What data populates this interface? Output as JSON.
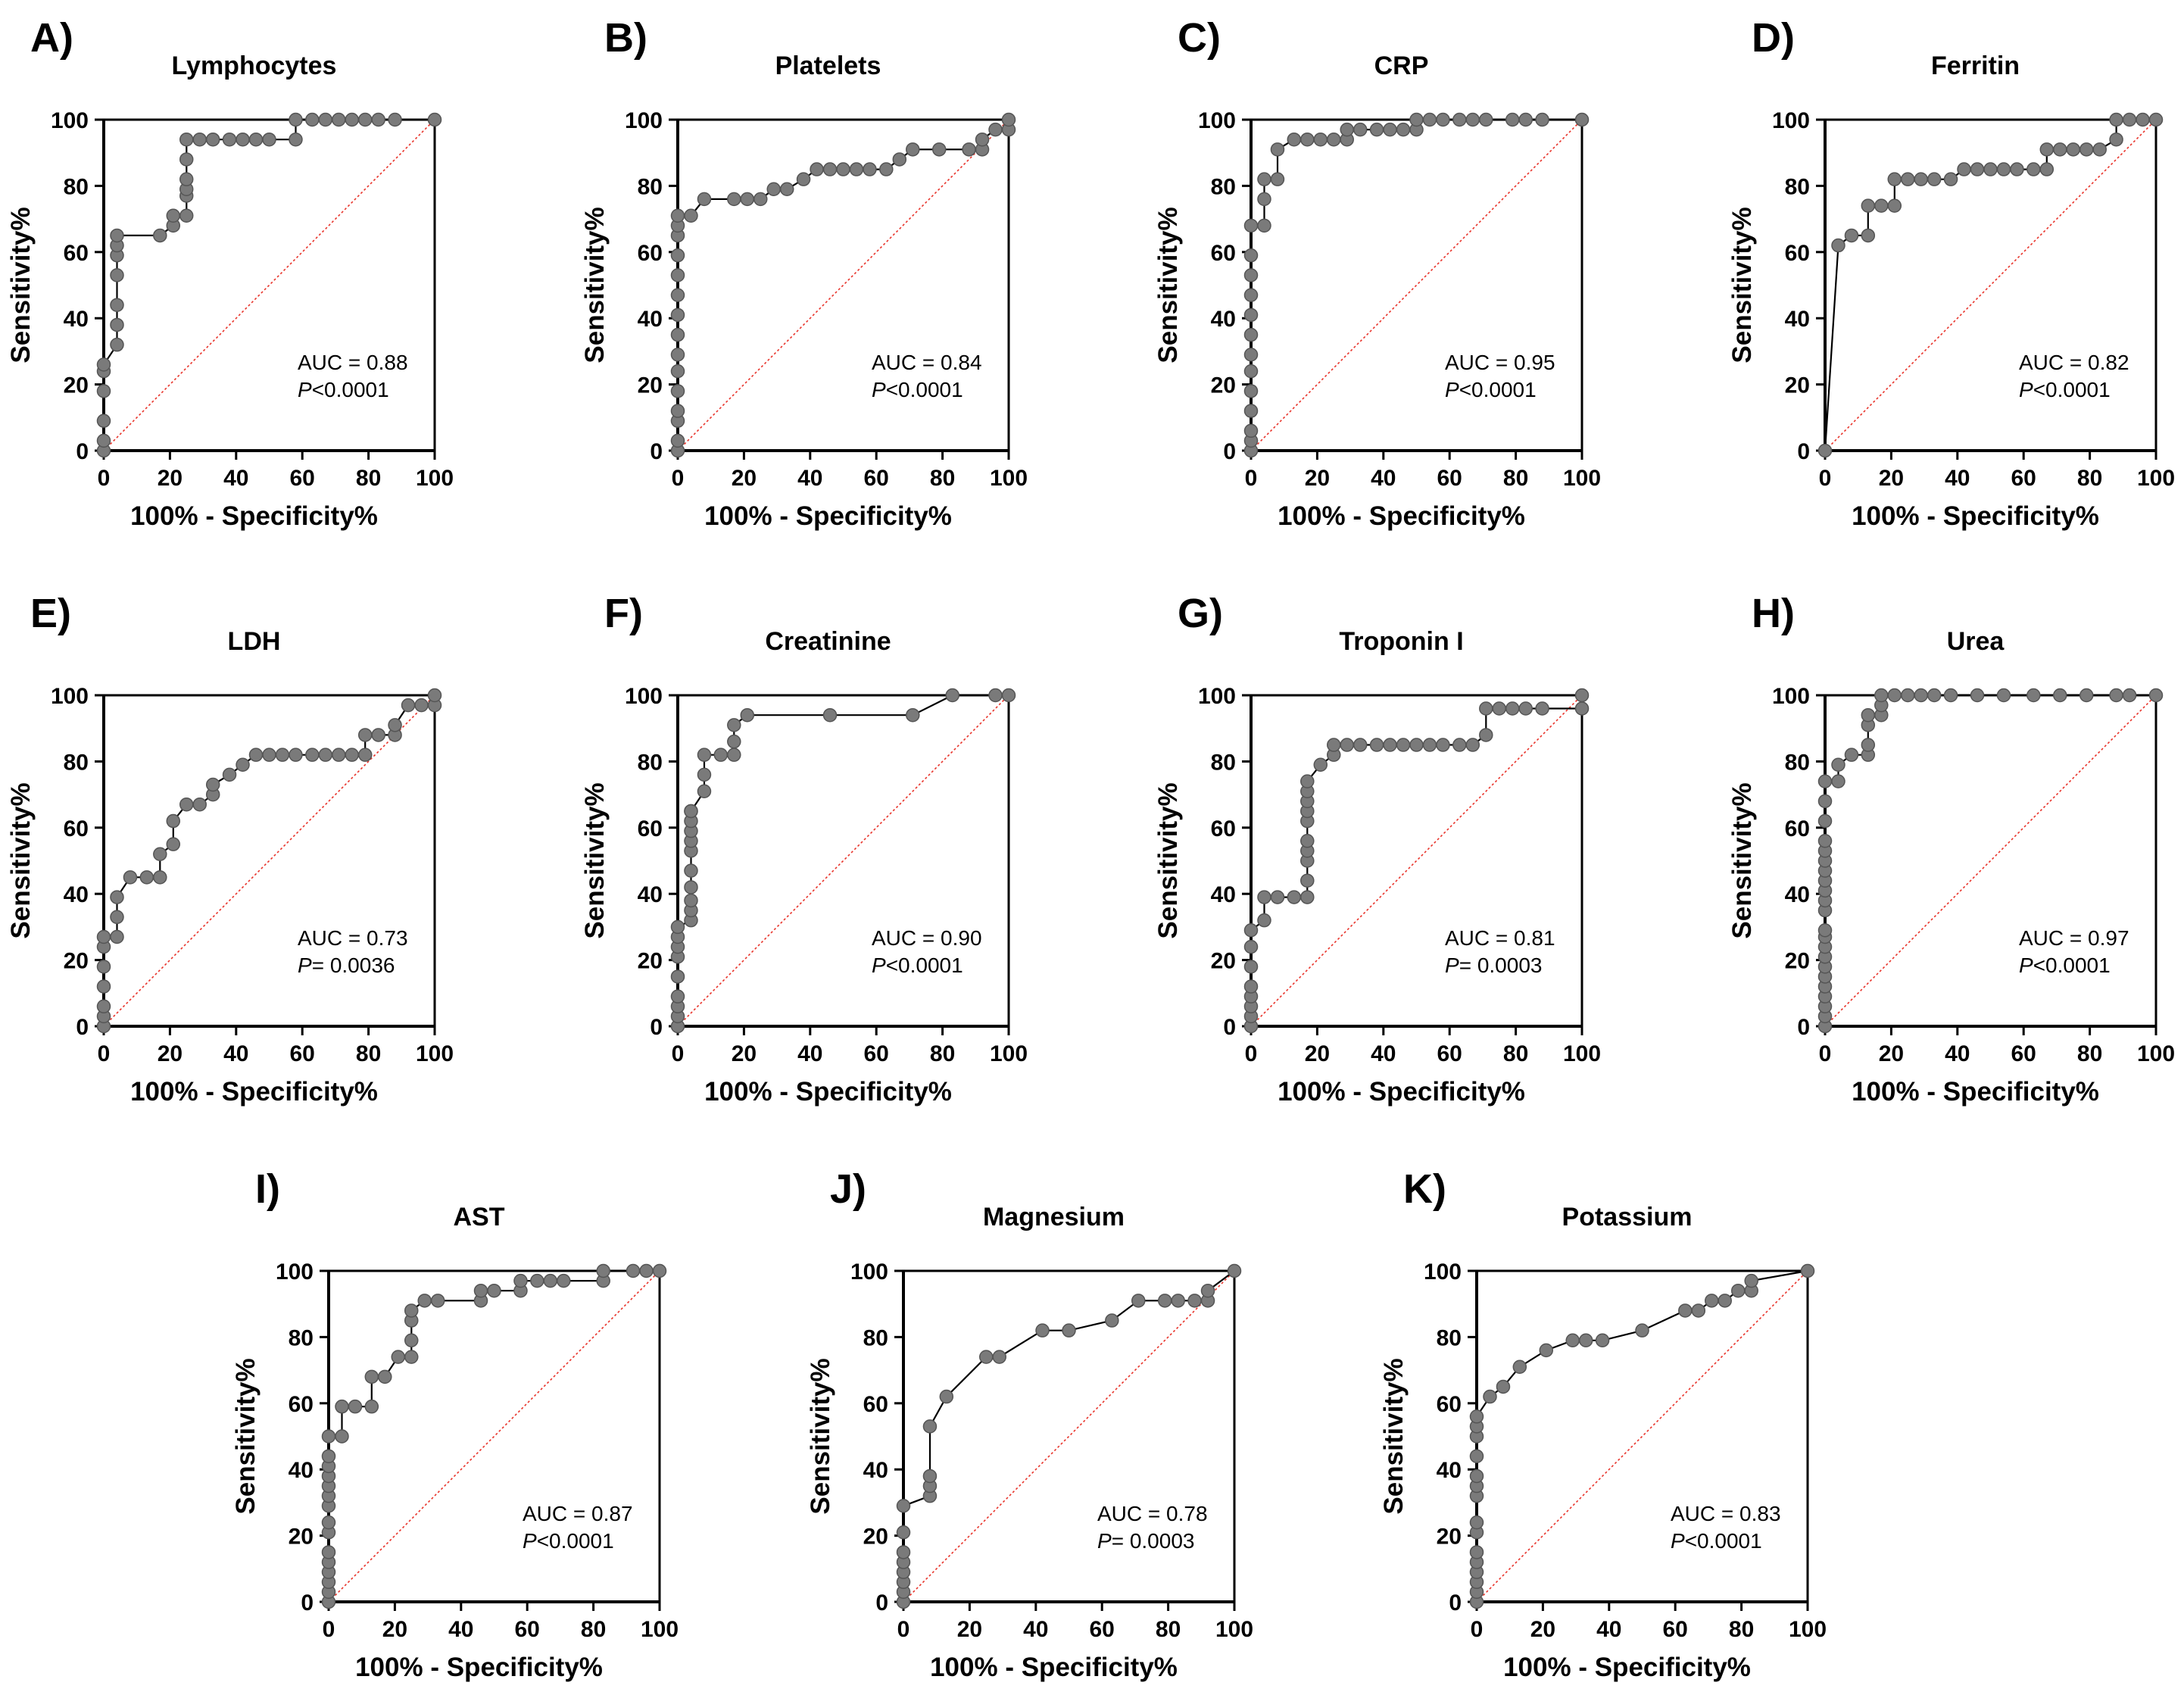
{
  "figure": {
    "xlabel": "100% - Specificity%",
    "ylabel": "Sensitivity%",
    "xlim": [
      0,
      100
    ],
    "ylim": [
      0,
      100
    ],
    "ticks": [
      0,
      20,
      40,
      60,
      80,
      100
    ],
    "tick_labels": [
      "0",
      "20",
      "40",
      "60",
      "80",
      "100"
    ],
    "colors": {
      "curve": "#000000",
      "marker_fill": "#7a7a7a",
      "marker_edge": "#555555",
      "reference": "#e8332a"
    }
  },
  "chart_data": [
    {
      "type": "line",
      "panel": "A)",
      "title": "Lymphocytes",
      "auc_label": "AUC = 0.88",
      "p_prefix": "P",
      "p_rest": "<0.0001",
      "x": [
        0,
        0,
        0,
        0,
        0,
        0,
        4,
        4,
        4,
        4,
        4,
        4,
        4,
        17,
        21,
        21,
        25,
        25,
        25,
        25,
        25,
        25,
        29,
        33,
        38,
        42,
        46,
        50,
        58,
        58,
        63,
        67,
        71,
        75,
        79,
        83,
        88,
        100
      ],
      "y": [
        0,
        3,
        9,
        18,
        24,
        26,
        32,
        38,
        44,
        53,
        59,
        62,
        65,
        65,
        68,
        71,
        71,
        77,
        79,
        82,
        88,
        94,
        94,
        94,
        94,
        94,
        94,
        94,
        94,
        100,
        100,
        100,
        100,
        100,
        100,
        100,
        100,
        100
      ]
    },
    {
      "type": "line",
      "panel": "B)",
      "title": "Platelets",
      "auc_label": "AUC = 0.84",
      "p_prefix": "P",
      "p_rest": "<0.0001",
      "x": [
        0,
        0,
        0,
        0,
        0,
        0,
        0,
        0,
        0,
        0,
        0,
        0,
        0,
        0,
        0,
        4,
        8,
        17,
        21,
        25,
        29,
        33,
        38,
        42,
        46,
        50,
        54,
        58,
        63,
        67,
        71,
        79,
        88,
        92,
        92,
        96,
        100,
        100
      ],
      "y": [
        0,
        3,
        9,
        12,
        18,
        24,
        29,
        35,
        41,
        47,
        53,
        59,
        65,
        68,
        71,
        71,
        76,
        76,
        76,
        76,
        79,
        79,
        82,
        85,
        85,
        85,
        85,
        85,
        85,
        88,
        91,
        91,
        91,
        91,
        94,
        97,
        97,
        100
      ]
    },
    {
      "type": "line",
      "panel": "C)",
      "title": "CRP",
      "auc_label": "AUC = 0.95",
      "p_prefix": "P",
      "p_rest": "<0.0001",
      "x": [
        0,
        0,
        0,
        0,
        0,
        0,
        0,
        0,
        0,
        0,
        0,
        0,
        0,
        4,
        4,
        4,
        8,
        8,
        13,
        17,
        21,
        25,
        29,
        29,
        33,
        38,
        42,
        46,
        50,
        50,
        54,
        58,
        63,
        67,
        71,
        79,
        83,
        88,
        100
      ],
      "y": [
        0,
        3,
        6,
        12,
        18,
        24,
        29,
        35,
        41,
        47,
        53,
        59,
        68,
        68,
        76,
        82,
        82,
        91,
        94,
        94,
        94,
        94,
        94,
        97,
        97,
        97,
        97,
        97,
        97,
        100,
        100,
        100,
        100,
        100,
        100,
        100,
        100,
        100,
        100
      ]
    },
    {
      "type": "line",
      "panel": "D)",
      "title": "Ferritin",
      "auc_label": "AUC = 0.82",
      "p_prefix": "P",
      "p_rest": "<0.0001",
      "x": [
        0,
        4,
        8,
        13,
        13,
        17,
        21,
        21,
        25,
        29,
        33,
        38,
        42,
        46,
        50,
        54,
        58,
        63,
        67,
        67,
        71,
        75,
        79,
        83,
        88,
        88,
        92,
        96,
        100
      ],
      "y": [
        0,
        62,
        65,
        65,
        74,
        74,
        74,
        82,
        82,
        82,
        82,
        82,
        85,
        85,
        85,
        85,
        85,
        85,
        85,
        91,
        91,
        91,
        91,
        91,
        94,
        100,
        100,
        100,
        100
      ]
    },
    {
      "type": "line",
      "panel": "E)",
      "title": "LDH",
      "auc_label": "AUC = 0.73",
      "p_prefix": "P",
      "p_rest": "= 0.0036",
      "x": [
        0,
        0,
        0,
        0,
        0,
        0,
        0,
        4,
        4,
        4,
        8,
        13,
        17,
        17,
        21,
        21,
        25,
        29,
        33,
        33,
        38,
        42,
        46,
        50,
        54,
        58,
        63,
        67,
        71,
        75,
        79,
        79,
        83,
        88,
        88,
        92,
        96,
        100,
        100
      ],
      "y": [
        0,
        3,
        6,
        12,
        18,
        24,
        27,
        27,
        33,
        39,
        45,
        45,
        45,
        52,
        55,
        62,
        67,
        67,
        70,
        73,
        76,
        79,
        82,
        82,
        82,
        82,
        82,
        82,
        82,
        82,
        82,
        88,
        88,
        88,
        91,
        97,
        97,
        97,
        100
      ]
    },
    {
      "type": "line",
      "panel": "F)",
      "title": "Creatinine",
      "auc_label": "AUC = 0.90",
      "p_prefix": "P",
      "p_rest": "<0.0001",
      "x": [
        0,
        0,
        0,
        0,
        0,
        0,
        0,
        0,
        0,
        4,
        4,
        4,
        4,
        4,
        4,
        4,
        4,
        4,
        4,
        4,
        8,
        8,
        8,
        13,
        17,
        17,
        17,
        21,
        46,
        71,
        83,
        96,
        100
      ],
      "y": [
        0,
        3,
        6,
        9,
        15,
        21,
        24,
        27,
        30,
        32,
        35,
        38,
        42,
        47,
        53,
        56,
        59,
        62,
        65,
        65,
        71,
        76,
        82,
        82,
        82,
        86,
        91,
        94,
        94,
        94,
        100,
        100,
        100
      ]
    },
    {
      "type": "line",
      "panel": "G)",
      "title": "Troponin I",
      "auc_label": "AUC = 0.81",
      "p_prefix": "P",
      "p_rest": "= 0.0003",
      "x": [
        0,
        0,
        0,
        0,
        0,
        0,
        0,
        0,
        4,
        4,
        8,
        13,
        17,
        17,
        17,
        17,
        17,
        17,
        17,
        17,
        17,
        17,
        21,
        25,
        25,
        29,
        33,
        38,
        42,
        46,
        50,
        54,
        58,
        63,
        67,
        71,
        71,
        75,
        79,
        83,
        88,
        100,
        100
      ],
      "y": [
        0,
        3,
        6,
        9,
        12,
        18,
        24,
        29,
        32,
        39,
        39,
        39,
        39,
        44,
        50,
        53,
        56,
        62,
        65,
        68,
        71,
        74,
        79,
        82,
        85,
        85,
        85,
        85,
        85,
        85,
        85,
        85,
        85,
        85,
        85,
        88,
        96,
        96,
        96,
        96,
        96,
        96,
        100
      ]
    },
    {
      "type": "line",
      "panel": "H)",
      "title": "Urea",
      "auc_label": "AUC = 0.97",
      "p_prefix": "P",
      "p_rest": "<0.0001",
      "x": [
        0,
        0,
        0,
        0,
        0,
        0,
        0,
        0,
        0,
        0,
        0,
        0,
        0,
        0,
        0,
        0,
        0,
        0,
        0,
        0,
        0,
        0,
        4,
        4,
        8,
        13,
        13,
        13,
        13,
        17,
        17,
        17,
        21,
        25,
        29,
        33,
        38,
        46,
        54,
        63,
        71,
        79,
        88,
        92,
        100
      ],
      "y": [
        0,
        3,
        6,
        9,
        12,
        15,
        18,
        21,
        24,
        27,
        29,
        35,
        38,
        41,
        44,
        47,
        50,
        53,
        56,
        62,
        68,
        74,
        74,
        79,
        82,
        82,
        85,
        91,
        94,
        94,
        97,
        100,
        100,
        100,
        100,
        100,
        100,
        100,
        100,
        100,
        100,
        100,
        100,
        100,
        100
      ]
    },
    {
      "type": "line",
      "panel": "I)",
      "title": "AST",
      "auc_label": "AUC = 0.87",
      "p_prefix": "P",
      "p_rest": "<0.0001",
      "x": [
        0,
        0,
        0,
        0,
        0,
        0,
        0,
        0,
        0,
        0,
        0,
        0,
        0,
        0,
        0,
        4,
        4,
        8,
        13,
        13,
        17,
        21,
        25,
        25,
        25,
        25,
        29,
        33,
        46,
        46,
        50,
        58,
        58,
        63,
        67,
        71,
        83,
        83,
        92,
        96,
        100
      ],
      "y": [
        0,
        3,
        6,
        9,
        12,
        15,
        21,
        24,
        29,
        32,
        35,
        38,
        41,
        44,
        50,
        50,
        59,
        59,
        59,
        68,
        68,
        74,
        74,
        79,
        85,
        88,
        91,
        91,
        91,
        94,
        94,
        94,
        97,
        97,
        97,
        97,
        97,
        100,
        100,
        100,
        100
      ],
      "x_stroke_note": ""
    },
    {
      "type": "line",
      "panel": "J)",
      "title": "Magnesium",
      "auc_label": "AUC = 0.78",
      "p_prefix": "P",
      "p_rest": "= 0.0003",
      "x": [
        0,
        0,
        0,
        0,
        0,
        0,
        0,
        0,
        8,
        8,
        8,
        8,
        13,
        25,
        29,
        42,
        50,
        63,
        71,
        79,
        83,
        88,
        92,
        92,
        100
      ],
      "y": [
        0,
        3,
        6,
        9,
        12,
        15,
        21,
        29,
        32,
        35,
        38,
        53,
        62,
        74,
        74,
        82,
        82,
        85,
        91,
        91,
        91,
        91,
        91,
        94,
        100
      ]
    },
    {
      "type": "line",
      "panel": "K)",
      "title": "Potassium",
      "auc_label": "AUC = 0.83",
      "p_prefix": "P",
      "p_rest": "<0.0001",
      "x": [
        0,
        0,
        0,
        0,
        0,
        0,
        0,
        0,
        0,
        0,
        0,
        0,
        0,
        0,
        0,
        4,
        8,
        13,
        21,
        29,
        33,
        38,
        50,
        63,
        67,
        71,
        75,
        79,
        83,
        83,
        100
      ],
      "y": [
        0,
        3,
        6,
        9,
        12,
        15,
        21,
        24,
        32,
        35,
        38,
        44,
        50,
        53,
        56,
        62,
        65,
        71,
        76,
        79,
        79,
        79,
        82,
        88,
        88,
        91,
        91,
        94,
        94,
        97,
        100
      ]
    }
  ]
}
